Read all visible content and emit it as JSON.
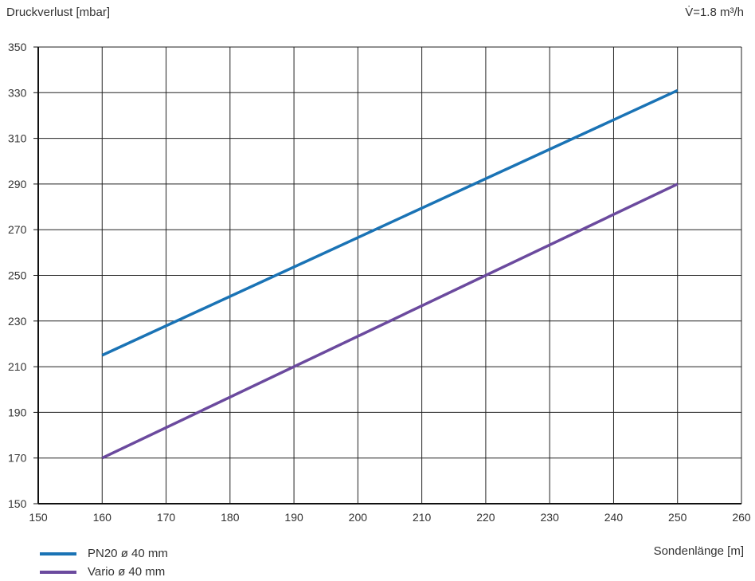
{
  "chart_data": {
    "type": "line",
    "ylabel": "Druckverlust  [mbar]",
    "xlabel": "Sondenlänge  [m]",
    "annotation": "V̇=1.8 m³/h",
    "xlim": [
      150,
      260
    ],
    "ylim": [
      150,
      350
    ],
    "xticks": [
      150,
      160,
      170,
      180,
      190,
      200,
      210,
      220,
      230,
      240,
      250,
      260
    ],
    "yticks": [
      150,
      170,
      190,
      210,
      230,
      250,
      270,
      290,
      310,
      330,
      350
    ],
    "grid": true,
    "legend_position": "bottom-left",
    "series": [
      {
        "name": "PN20 ø 40 mm",
        "color": "#1a73b5",
        "points": [
          [
            160,
            215
          ],
          [
            250,
            331
          ]
        ]
      },
      {
        "name": "Vario ø 40 mm",
        "color": "#6b4a9e",
        "points": [
          [
            160,
            170
          ],
          [
            250,
            290
          ]
        ]
      }
    ]
  }
}
